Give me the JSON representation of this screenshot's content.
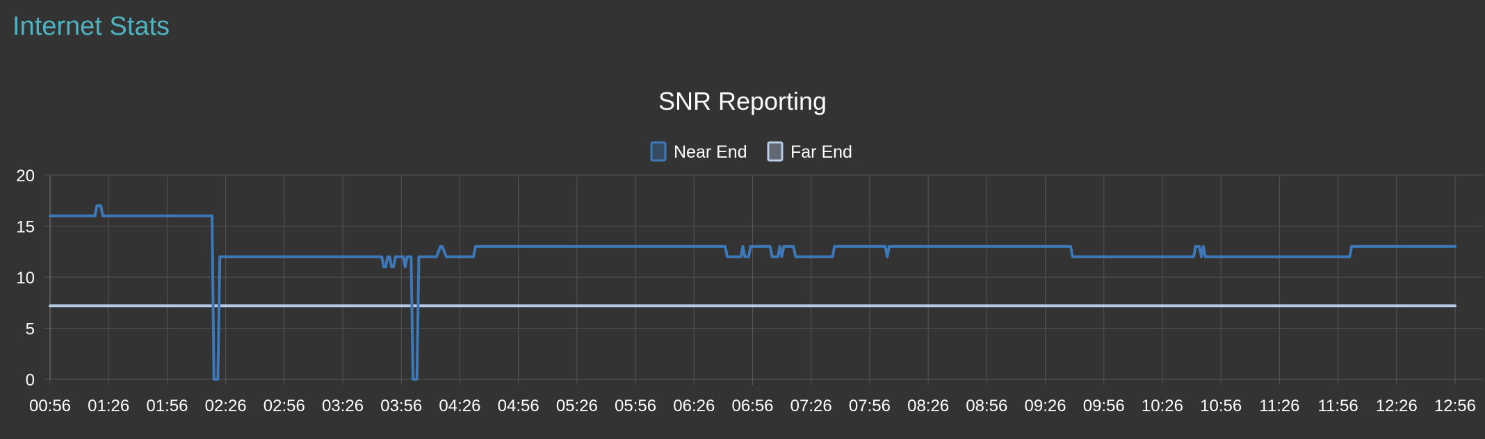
{
  "app": {
    "title": "Internet Stats"
  },
  "colors": {
    "background": "#333333",
    "grid": "#555555",
    "axis_text": "#ffffff",
    "app_title": "#4fb3bf",
    "near_end": "#3d78b8",
    "far_end": "#b8cbe8"
  },
  "chart_data": {
    "type": "line",
    "title": "SNR Reporting",
    "xlabel": "",
    "ylabel": "",
    "ylim": [
      0,
      20
    ],
    "yticks": [
      0,
      5,
      10,
      15,
      20
    ],
    "grid": true,
    "legend_position": "top-center",
    "x_range": [
      "00:56",
      "12:56"
    ],
    "x_tick_labels": [
      "00:56",
      "01:26",
      "01:56",
      "02:26",
      "02:56",
      "03:26",
      "03:56",
      "04:26",
      "04:56",
      "05:26",
      "05:56",
      "06:26",
      "06:56",
      "07:26",
      "07:56",
      "08:26",
      "08:56",
      "09:26",
      "09:56",
      "10:26",
      "10:56",
      "11:26",
      "11:56",
      "12:26",
      "12:56"
    ],
    "series": [
      {
        "name": "Near End",
        "color": "#3d78b8",
        "points": [
          [
            "00:56",
            16
          ],
          [
            "01:19",
            16
          ],
          [
            "01:20",
            17
          ],
          [
            "01:22",
            17
          ],
          [
            "01:23",
            16
          ],
          [
            "02:19",
            16
          ],
          [
            "02:20",
            0
          ],
          [
            "02:22",
            0
          ],
          [
            "02:23",
            12
          ],
          [
            "03:46",
            12
          ],
          [
            "03:47",
            11
          ],
          [
            "03:48",
            11
          ],
          [
            "03:49",
            12
          ],
          [
            "03:50",
            12
          ],
          [
            "03:51",
            11
          ],
          [
            "03:52",
            11
          ],
          [
            "03:53",
            12
          ],
          [
            "03:57",
            12
          ],
          [
            "03:58",
            11
          ],
          [
            "03:59",
            12
          ],
          [
            "04:01",
            12
          ],
          [
            "04:02",
            0
          ],
          [
            "04:04",
            0
          ],
          [
            "04:05",
            12
          ],
          [
            "04:14",
            12
          ],
          [
            "04:15",
            12.5
          ],
          [
            "04:16",
            13
          ],
          [
            "04:17",
            13
          ],
          [
            "04:19",
            12
          ],
          [
            "04:33",
            12
          ],
          [
            "04:34",
            13
          ],
          [
            "06:42",
            13
          ],
          [
            "06:43",
            12
          ],
          [
            "06:50",
            12
          ],
          [
            "06:51",
            13
          ],
          [
            "06:52",
            12
          ],
          [
            "06:54",
            12
          ],
          [
            "06:55",
            13
          ],
          [
            "07:05",
            13
          ],
          [
            "07:06",
            12
          ],
          [
            "07:09",
            12
          ],
          [
            "07:10",
            13
          ],
          [
            "07:11",
            12
          ],
          [
            "07:12",
            13
          ],
          [
            "07:17",
            13
          ],
          [
            "07:18",
            12
          ],
          [
            "07:37",
            12
          ],
          [
            "07:38",
            13
          ],
          [
            "08:04",
            13
          ],
          [
            "08:05",
            12
          ],
          [
            "08:06",
            13
          ],
          [
            "09:39",
            13
          ],
          [
            "09:40",
            12
          ],
          [
            "10:42",
            12
          ],
          [
            "10:43",
            13
          ],
          [
            "10:45",
            13
          ],
          [
            "10:46",
            12
          ],
          [
            "10:47",
            13
          ],
          [
            "10:48",
            12
          ],
          [
            "12:02",
            12
          ],
          [
            "12:03",
            13
          ],
          [
            "12:56",
            13
          ]
        ]
      },
      {
        "name": "Far End",
        "color": "#b8cbe8",
        "points": [
          [
            "00:56",
            7.2
          ],
          [
            "12:56",
            7.2
          ]
        ]
      }
    ]
  }
}
